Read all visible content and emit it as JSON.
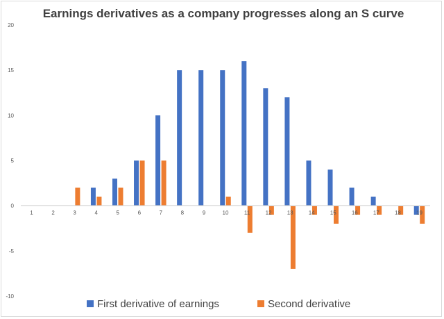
{
  "chart_data": {
    "type": "bar",
    "title": "Earnings derivatives as a company progresses along an S curve",
    "xlabel": "",
    "ylabel": "",
    "categories": [
      "1",
      "2",
      "3",
      "4",
      "5",
      "6",
      "7",
      "8",
      "9",
      "10",
      "11",
      "12",
      "13",
      "14",
      "15",
      "16",
      "17",
      "18",
      "19"
    ],
    "series": [
      {
        "name": "First derivative of earnings",
        "color": "#4472c4",
        "values": [
          0,
          0,
          0,
          2,
          3,
          5,
          10,
          15,
          15,
          15,
          16,
          13,
          12,
          5,
          4,
          2,
          1,
          0,
          -1
        ]
      },
      {
        "name": "Second derivative",
        "color": "#ed7d31",
        "values": [
          0,
          0,
          2,
          1,
          2,
          5,
          5,
          0,
          0,
          1,
          -3,
          -1,
          -7,
          -1,
          -2,
          -1,
          -1,
          -1,
          -2
        ]
      }
    ],
    "ylim": [
      -10,
      20
    ],
    "yticks": [
      -10,
      -5,
      0,
      5,
      10,
      15,
      20
    ],
    "grid": false,
    "legend": "bottom"
  }
}
